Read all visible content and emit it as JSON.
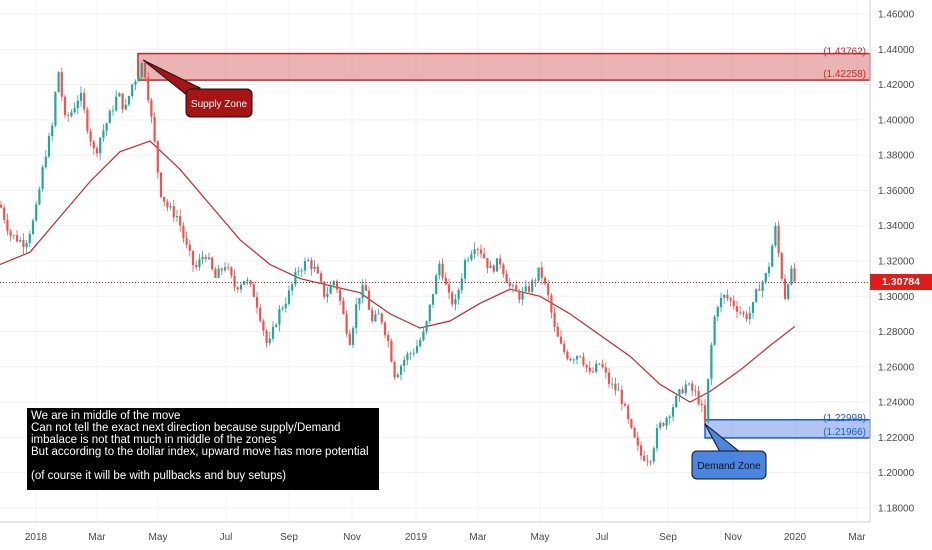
{
  "chart_data": {
    "type": "candlestick",
    "x_labels": [
      "2018",
      "Mar",
      "May",
      "Jul",
      "Sep",
      "Nov",
      "2019",
      "Mar",
      "May",
      "Jul",
      "Sep",
      "Nov",
      "2020",
      "Mar"
    ],
    "y_ticks": [
      "1.46000",
      "1.44000",
      "1.42000",
      "1.40000",
      "1.38000",
      "1.36000",
      "1.34000",
      "1.32000",
      "1.30000",
      "1.28000",
      "1.26000",
      "1.24000",
      "1.22000",
      "1.20000",
      "1.18000"
    ],
    "ylim": [
      1.172,
      1.468
    ],
    "current_price": "1.30784",
    "moving_average": "200-period (red)",
    "price_path": [
      [
        0,
        1.352
      ],
      [
        10,
        1.335
      ],
      [
        25,
        1.33
      ],
      [
        35,
        1.345
      ],
      [
        45,
        1.38
      ],
      [
        52,
        1.395
      ],
      [
        58,
        1.43
      ],
      [
        65,
        1.4
      ],
      [
        72,
        1.405
      ],
      [
        80,
        1.415
      ],
      [
        88,
        1.395
      ],
      [
        95,
        1.38
      ],
      [
        100,
        1.39
      ],
      [
        108,
        1.4
      ],
      [
        118,
        1.415
      ],
      [
        125,
        1.405
      ],
      [
        132,
        1.42
      ],
      [
        140,
        1.428
      ],
      [
        143,
        1.434
      ],
      [
        148,
        1.415
      ],
      [
        155,
        1.385
      ],
      [
        160,
        1.36
      ],
      [
        168,
        1.35
      ],
      [
        178,
        1.345
      ],
      [
        185,
        1.33
      ],
      [
        195,
        1.315
      ],
      [
        205,
        1.325
      ],
      [
        215,
        1.31
      ],
      [
        225,
        1.318
      ],
      [
        235,
        1.305
      ],
      [
        245,
        1.31
      ],
      [
        255,
        1.3
      ],
      [
        262,
        1.285
      ],
      [
        268,
        1.27
      ],
      [
        278,
        1.29
      ],
      [
        288,
        1.3
      ],
      [
        298,
        1.315
      ],
      [
        308,
        1.32
      ],
      [
        315,
        1.315
      ],
      [
        325,
        1.3
      ],
      [
        335,
        1.31
      ],
      [
        345,
        1.285
      ],
      [
        350,
        1.275
      ],
      [
        358,
        1.3
      ],
      [
        365,
        1.305
      ],
      [
        372,
        1.285
      ],
      [
        380,
        1.29
      ],
      [
        388,
        1.275
      ],
      [
        395,
        1.255
      ],
      [
        405,
        1.265
      ],
      [
        415,
        1.27
      ],
      [
        425,
        1.28
      ],
      [
        432,
        1.3
      ],
      [
        440,
        1.32
      ],
      [
        448,
        1.3
      ],
      [
        455,
        1.295
      ],
      [
        465,
        1.32
      ],
      [
        475,
        1.33
      ],
      [
        482,
        1.325
      ],
      [
        490,
        1.315
      ],
      [
        500,
        1.32
      ],
      [
        510,
        1.305
      ],
      [
        520,
        1.3
      ],
      [
        530,
        1.305
      ],
      [
        540,
        1.315
      ],
      [
        548,
        1.3
      ],
      [
        555,
        1.28
      ],
      [
        562,
        1.27
      ],
      [
        570,
        1.265
      ],
      [
        580,
        1.268
      ],
      [
        590,
        1.255
      ],
      [
        600,
        1.262
      ],
      [
        610,
        1.25
      ],
      [
        620,
        1.245
      ],
      [
        630,
        1.225
      ],
      [
        640,
        1.21
      ],
      [
        650,
        1.208
      ],
      [
        658,
        1.225
      ],
      [
        665,
        1.23
      ],
      [
        675,
        1.24
      ],
      [
        685,
        1.25
      ],
      [
        695,
        1.245
      ],
      [
        700,
        1.24
      ],
      [
        705,
        1.228
      ],
      [
        710,
        1.265
      ],
      [
        716,
        1.295
      ],
      [
        725,
        1.3
      ],
      [
        735,
        1.295
      ],
      [
        745,
        1.288
      ],
      [
        752,
        1.292
      ],
      [
        758,
        1.305
      ],
      [
        765,
        1.31
      ],
      [
        770,
        1.32
      ],
      [
        775,
        1.34
      ],
      [
        780,
        1.318
      ],
      [
        785,
        1.3
      ],
      [
        790,
        1.315
      ],
      [
        795,
        1.308
      ]
    ],
    "ma_path": [
      [
        0,
        1.318
      ],
      [
        30,
        1.325
      ],
      [
        60,
        1.345
      ],
      [
        90,
        1.365
      ],
      [
        120,
        1.382
      ],
      [
        150,
        1.388
      ],
      [
        180,
        1.372
      ],
      [
        210,
        1.352
      ],
      [
        240,
        1.332
      ],
      [
        270,
        1.318
      ],
      [
        300,
        1.31
      ],
      [
        330,
        1.306
      ],
      [
        360,
        1.302
      ],
      [
        390,
        1.29
      ],
      [
        420,
        1.282
      ],
      [
        450,
        1.286
      ],
      [
        480,
        1.296
      ],
      [
        510,
        1.304
      ],
      [
        540,
        1.3
      ],
      [
        570,
        1.29
      ],
      [
        600,
        1.278
      ],
      [
        630,
        1.266
      ],
      [
        660,
        1.25
      ],
      [
        690,
        1.24
      ],
      [
        710,
        1.246
      ],
      [
        740,
        1.258
      ],
      [
        770,
        1.272
      ],
      [
        795,
        1.283
      ]
    ],
    "supply_zone": {
      "top": 1.43762,
      "bottom": 1.42258,
      "top_label": "(1.43762)",
      "bottom_label": "(1.42258)",
      "color": "#c62828"
    },
    "demand_zone": {
      "top": 1.22998,
      "bottom": 1.21966,
      "top_label": "(1.22998)",
      "bottom_label": "(1.21966)",
      "color": "#1e5ad6"
    }
  },
  "annotations": {
    "supply_label": "Supply Zone",
    "demand_label": "Demand Zone",
    "note": "We are in middle of the move\nCan not tell the exact next direction because supply/Demand\nimbalace is not that much in middle of the zones\nBut according to the dollar index, upward move has more potential\n\n(of course it will be with pullbacks and buy setups)"
  },
  "colors": {
    "bull": "#26a69a",
    "bear": "#ef5350",
    "ma": "#c62828",
    "price_tag": "#e21b1b"
  }
}
